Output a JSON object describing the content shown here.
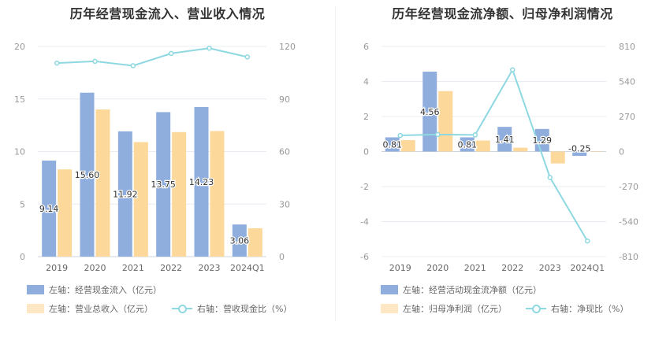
{
  "charts": [
    {
      "title": "历年经营现金流入、营业收入情况",
      "legend": {
        "bar1": "左轴：经营现金流入（亿元）",
        "bar2": "左轴：营业总收入（亿元）",
        "line": "右轴：营收现金比（%）"
      }
    },
    {
      "title": "历年经营现金流净额、归母净利润情况",
      "legend": {
        "bar1": "左轴：经营活动现金流净额（亿元）",
        "bar2": "左轴：归母净利润（亿元）",
        "line": "右轴：净现比（%）"
      }
    }
  ],
  "colors": {
    "bar1": "#8faedd",
    "bar2": "#fdd89b",
    "line": "#8ed8e1",
    "grid": "#e8ecf2",
    "axis": "#999999",
    "label": "#333333"
  },
  "chart_data": [
    {
      "type": "bar",
      "title": "历年经营现金流入、营业收入情况",
      "categories": [
        "2019",
        "2020",
        "2021",
        "2022",
        "2023",
        "2024Q1"
      ],
      "left_ticks": [
        0,
        5,
        10,
        15,
        20
      ],
      "right_ticks": [
        0,
        30,
        60,
        90,
        120
      ],
      "ylim_left": [
        0,
        20
      ],
      "ylim_right": [
        0,
        120
      ],
      "series": [
        {
          "name": "左轴：经营现金流入（亿元）",
          "axis": "left",
          "kind": "bar",
          "values": [
            9.14,
            15.6,
            11.92,
            13.75,
            14.23,
            3.06
          ],
          "labels": [
            "9.14",
            "15.60",
            "11.92",
            "13.75",
            "14.23",
            "3.06"
          ]
        },
        {
          "name": "左轴：营业总收入（亿元）",
          "axis": "left",
          "kind": "bar",
          "values": [
            8.3,
            14.0,
            10.9,
            11.85,
            11.95,
            2.7
          ]
        },
        {
          "name": "右轴：营收现金比（%）",
          "axis": "right",
          "kind": "line",
          "values": [
            110.5,
            111.5,
            109,
            116,
            119,
            114
          ]
        }
      ]
    },
    {
      "type": "bar",
      "title": "历年经营现金流净额、归母净利润情况",
      "categories": [
        "2019",
        "2020",
        "2021",
        "2022",
        "2023",
        "2024Q1"
      ],
      "left_ticks": [
        -6,
        -4,
        -2,
        0,
        2,
        4,
        6
      ],
      "right_ticks": [
        -810,
        -540,
        -270,
        0,
        270,
        540,
        810
      ],
      "ylim_left": [
        -6,
        6
      ],
      "ylim_right": [
        -810,
        810
      ],
      "series": [
        {
          "name": "左轴：经营活动现金流净额（亿元）",
          "axis": "left",
          "kind": "bar",
          "values": [
            0.81,
            4.56,
            0.81,
            1.41,
            1.29,
            -0.25
          ],
          "labels": [
            "0.81",
            "4.56",
            "0.81",
            "1.41",
            "1.29",
            "-0.25"
          ]
        },
        {
          "name": "左轴：归母净利润（亿元）",
          "axis": "left",
          "kind": "bar",
          "values": [
            0.65,
            3.45,
            0.63,
            0.22,
            -0.68,
            0.02
          ]
        },
        {
          "name": "右轴：净现比（%）",
          "axis": "right",
          "kind": "line",
          "values": [
            124,
            131,
            128,
            630,
            -200,
            -690
          ]
        }
      ]
    }
  ]
}
